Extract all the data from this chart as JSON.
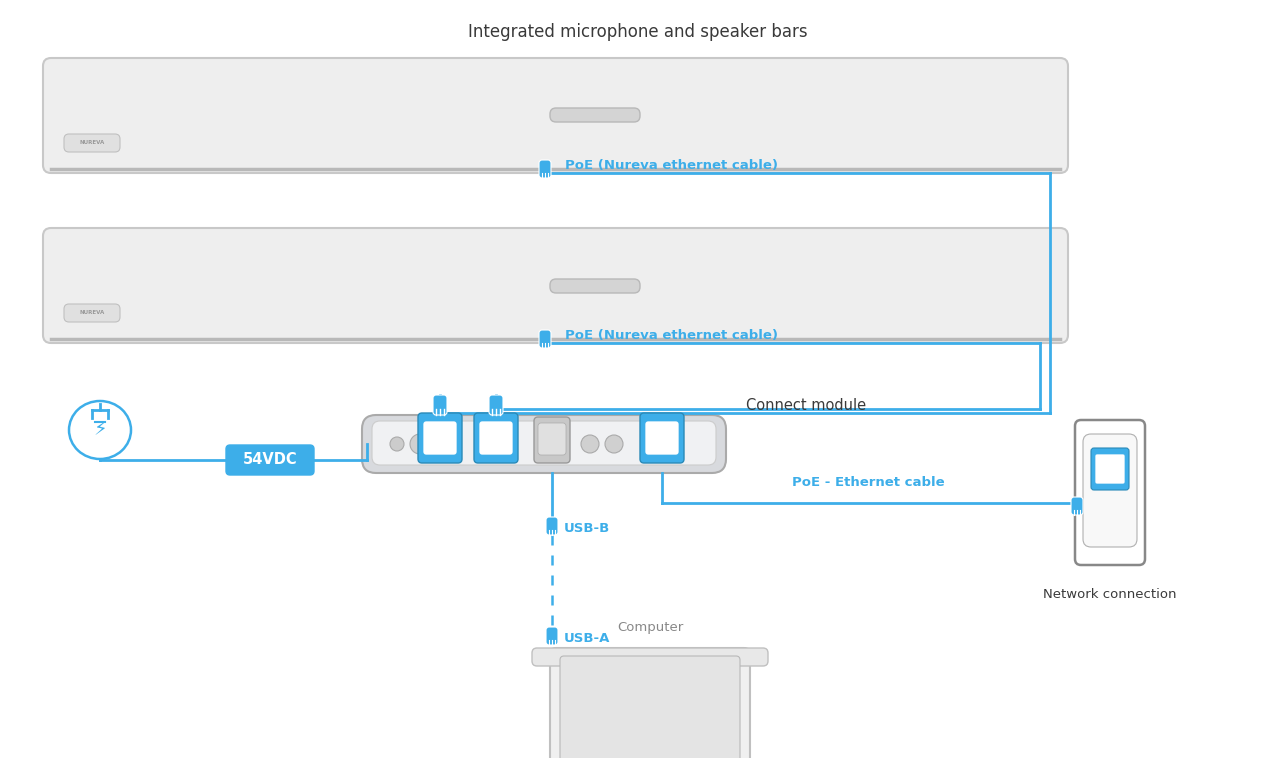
{
  "bg_color": "#ffffff",
  "blue": "#3daee9",
  "dark_text": "#3a3a3a",
  "title": "Integrated microphone and speaker bars",
  "label_poe1": "PoE (Nureva ethernet cable)",
  "label_poe2": "PoE (Nureva ethernet cable)",
  "label_poe_eth": "PoE - Ethernet cable",
  "label_usb_b": "USB-B",
  "label_usb_a": "USB-A",
  "label_54vdc": "54VDC",
  "label_connect": "Connect module",
  "label_network": "Network connection",
  "label_computer": "Computer",
  "bar_color_face": "#eeeeee",
  "bar_color_edge": "#c8c8c8",
  "bar_shadow": "#b8b8b8",
  "module_face": "#dcdee2",
  "module_inner": "#f2f3f5",
  "slot_face": "#d0d0d2",
  "logo_label": "#c8c8c8"
}
